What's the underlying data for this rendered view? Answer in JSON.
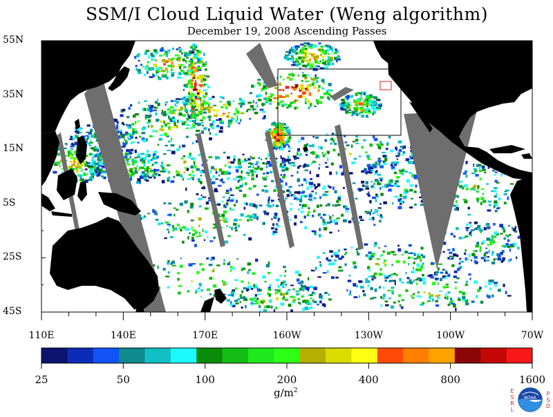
{
  "title": "SSM/I Cloud Liquid Water (Weng algorithm)",
  "subtitle": "December 19, 2008  Ascending Passes",
  "map": {
    "lat_labels": [
      "55N",
      "35N",
      "15N",
      "5S",
      "25S",
      "45S"
    ],
    "lon_labels": [
      "110E",
      "140E",
      "170E",
      "160W",
      "130W",
      "100W",
      "70W"
    ],
    "land_color": "#000000",
    "no_data_color": "#6e6e6e",
    "ocean_background": "#ffffff",
    "box_color": "#000000"
  },
  "colorbar": {
    "labels": [
      "25",
      "50",
      "100",
      "200",
      "400",
      "800",
      "1600"
    ],
    "units": "g/m",
    "units_exponent": "2",
    "colors": [
      "#0c1470",
      "#0b2cb6",
      "#1253f5",
      "#0e8a8c",
      "#10c0c4",
      "#1ef8ff",
      "#0a8c0a",
      "#14be14",
      "#1ee81e",
      "#2eff16",
      "#b5b000",
      "#dadc00",
      "#fcff10",
      "#ff4a08",
      "#ff7e00",
      "#ffa200",
      "#8a0606",
      "#c40808",
      "#f81818"
    ]
  },
  "logo": {
    "left_letters": [
      "E",
      "S",
      "R",
      "L"
    ],
    "right_letters": [
      "P",
      "S",
      "D"
    ],
    "center_text": "NOAA"
  }
}
